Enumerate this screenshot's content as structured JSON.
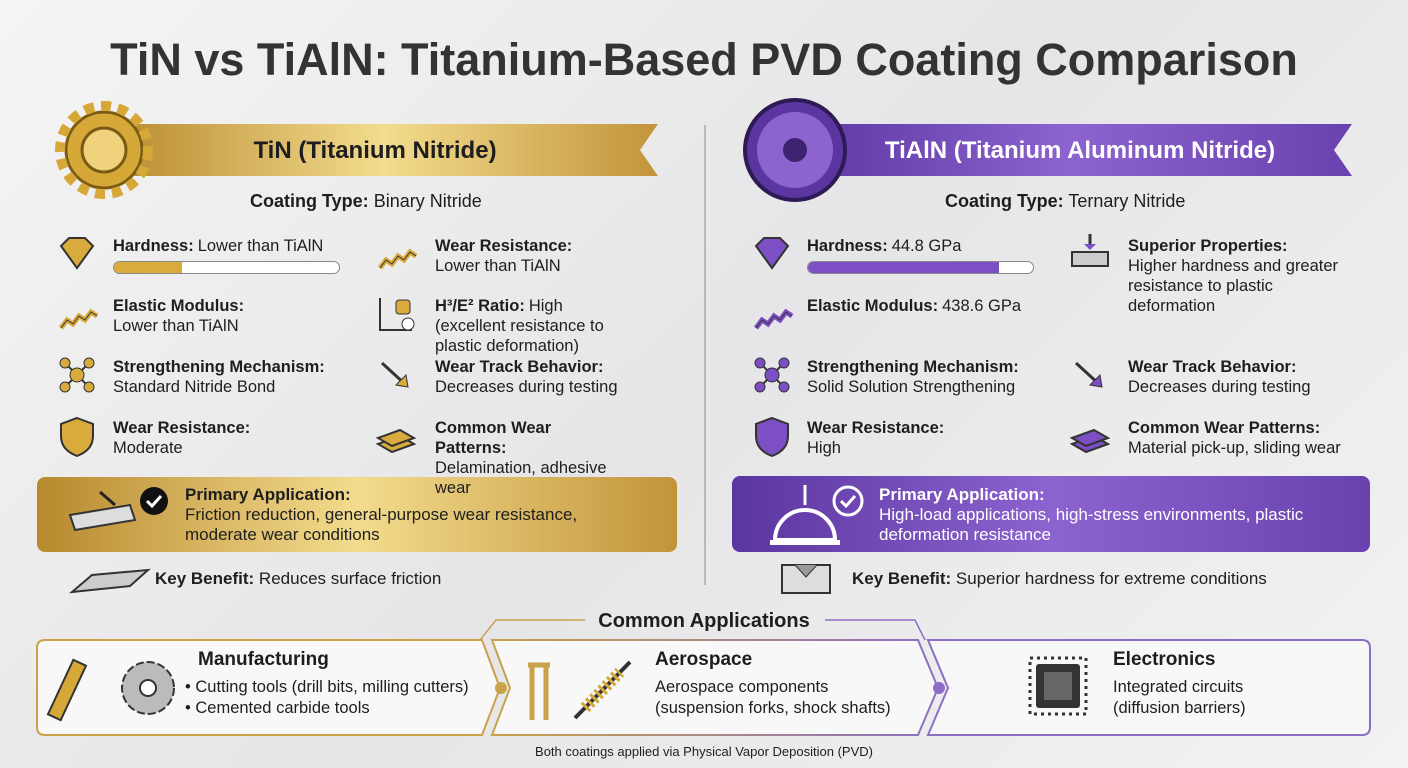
{
  "title": "TiN vs TiAlN: Titanium-Based PVD Coating Comparison",
  "tin": {
    "banner": "TiN (Titanium Nitride)",
    "coating_type": {
      "label": "Coating Type:",
      "value": "Binary Nitride"
    },
    "left_column": [
      {
        "label": "Hardness:",
        "value": "Lower than TiAlN"
      },
      {
        "label": "Elastic Modulus:",
        "value": "Lower than TiAlN"
      },
      {
        "label": "Strengthening Mechanism:",
        "value": "Standard Nitride Bond"
      },
      {
        "label": "Wear Resistance:",
        "value": "Moderate"
      }
    ],
    "right_column": [
      {
        "label": "Wear Resistance:",
        "value": "Lower than TiAlN"
      },
      {
        "label": "H³/E² Ratio:",
        "value": "High (excellent resistance to plastic deformation)"
      },
      {
        "label": "Wear Track Behavior:",
        "value": "Decreases during testing"
      },
      {
        "label": "Common Wear Patterns:",
        "value": "Delamination, adhesive wear"
      }
    ],
    "primary_application": {
      "label": "Primary Application:",
      "text": "Friction reduction, general-purpose wear resistance, moderate wear conditions"
    },
    "key_benefit": {
      "label": "Key Benefit:",
      "text": "Reduces surface friction"
    }
  },
  "tialn": {
    "banner": "TiAlN (Titanium Aluminum Nitride)",
    "coating_type": {
      "label": "Coating Type:",
      "value": "Ternary Nitride"
    },
    "left_column": [
      {
        "label": "Hardness:",
        "value": "44.8 GPa"
      },
      {
        "label": "Elastic Modulus:",
        "value": "438.6 GPa"
      },
      {
        "label": "Strengthening Mechanism:",
        "value": "Solid Solution Strengthening"
      },
      {
        "label": "Wear Resistance:",
        "value": "High"
      }
    ],
    "right_column": [
      {
        "label": "Superior Properties:",
        "value": "Higher hardness and greater resistance to plastic deformation"
      },
      {
        "label": "Wear Track Behavior:",
        "value": "Decreases during testing"
      },
      {
        "label": "Common Wear Patterns:",
        "value": "Material pick-up, sliding wear"
      }
    ],
    "primary_application": {
      "label": "Primary Application:",
      "text": "High-load applications, high-stress environments, plastic deformation resistance"
    },
    "key_benefit": {
      "label": "Key Benefit:",
      "text": "Superior hardness for extreme conditions"
    }
  },
  "common_applications": {
    "title": "Common Applications",
    "items": [
      {
        "title": "Manufacturing",
        "lines": [
          "• Cutting tools (drill bits, milling cutters)",
          "• Cemented carbide tools"
        ]
      },
      {
        "title": "Aerospace",
        "lines": [
          "Aerospace components",
          "(suspension forks, shock shafts)"
        ]
      },
      {
        "title": "Electronics",
        "lines": [
          "Integrated circuits",
          "(diffusion barriers)"
        ]
      }
    ]
  },
  "footer": "Both coatings applied via Physical Vapor Deposition (PVD)"
}
